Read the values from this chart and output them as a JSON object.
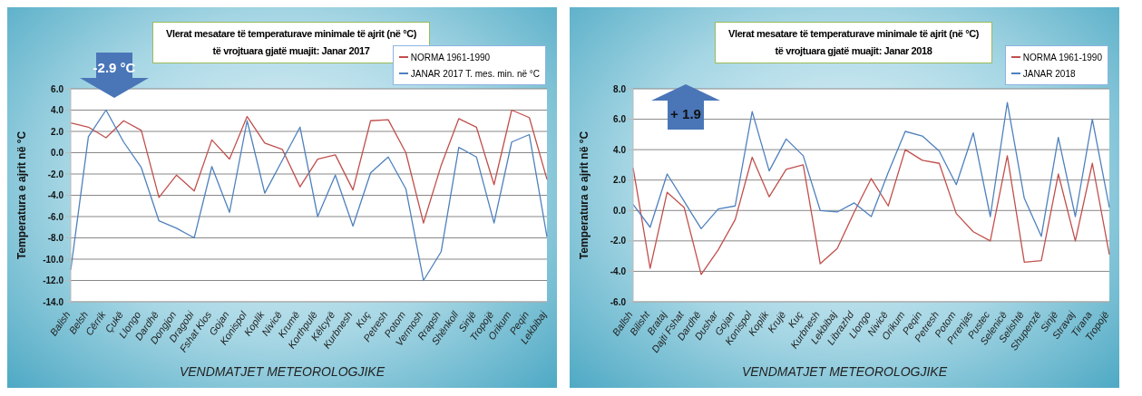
{
  "chart_data": [
    {
      "type": "line",
      "title": "Vlerat mesatare të temperaturave minimale të ajrit (në °C)\ntë vrojtuara gjatë muajit:  Janar 2017",
      "xlabel": "VENDMATJET  METEOROLOGJIKE",
      "ylabel": "Temperatura e ajrit në °C",
      "annotations": [
        "-2.9 °C"
      ],
      "categories": [
        "Balish",
        "Belsh",
        "Cërrik",
        "Çukë",
        "Llongo",
        "Dardhë",
        "Dongjon",
        "Dragobi",
        "Fshat Klos",
        "Gojan",
        "Konispol",
        "Koplik",
        "Nivicë",
        "Krumë",
        "Korthpulë",
        "Këlcyrë",
        "Kurbnesh",
        "Kuç",
        "Petresh",
        "Potom",
        "Vermosh",
        "Rrapsh",
        "Shënkoll",
        "Sinjë",
        "Tropojë",
        "Orikum",
        "Peqin",
        "Lekbibaj"
      ],
      "series": [
        {
          "name": "NORMA 1961-1990",
          "color": "#c0504d",
          "values": [
            2.8,
            2.4,
            1.4,
            3.0,
            2.1,
            -4.2,
            -2.1,
            -3.6,
            1.2,
            -0.6,
            3.4,
            0.9,
            0.3,
            -3.2,
            -0.6,
            -0.2,
            -3.5,
            3.0,
            3.1,
            0.0,
            -6.6,
            -1.2,
            3.2,
            2.4,
            -3.0,
            4.0,
            3.3,
            -2.5
          ]
        },
        {
          "name": "JANAR 2017 T. mes.  min. në °C",
          "color": "#4f81bd",
          "values": [
            -11.0,
            1.5,
            4.0,
            1.0,
            -1.4,
            -6.4,
            -7.1,
            -8.0,
            -1.3,
            -5.6,
            3.0,
            -3.8,
            -0.7,
            2.4,
            -6.0,
            -2.1,
            -6.9,
            -1.9,
            -0.4,
            -3.4,
            -12.0,
            -9.3,
            0.5,
            -0.4,
            -6.6,
            1.0,
            1.7,
            -7.9
          ]
        }
      ],
      "ylim": [
        -14,
        6
      ],
      "yticks": [
        {
          "value": -14,
          "label": "-14.0"
        },
        {
          "value": -12,
          "label": "-12.0"
        },
        {
          "value": -10,
          "label": "-10.0"
        },
        {
          "value": -8,
          "label": "-8.0"
        },
        {
          "value": -6,
          "label": "-6.0"
        },
        {
          "value": -4,
          "label": "-4.0"
        },
        {
          "value": -2,
          "label": "-2.0"
        },
        {
          "value": 0,
          "label": "0.0"
        },
        {
          "value": 2,
          "label": "2.0"
        },
        {
          "value": 4,
          "label": "4.0"
        },
        {
          "value": 6,
          "label": "6.0"
        }
      ],
      "grid": "y",
      "legend": "top right",
      "marker": "none",
      "line_style": "solid"
    },
    {
      "type": "line",
      "title": "Vlerat mesatare të temperaturave minimale të ajrit (në °C)\ntë vrojtuara gjatë muajit:  Janar 2018",
      "xlabel": "VENDMATJET  METEOROLOGJIKE",
      "ylabel": "Temperatura e ajrit në °C",
      "annotations": [
        "+ 1.9"
      ],
      "categories": [
        "Ballsh",
        "Bilisht",
        "Brataj",
        "Dajti Fshat",
        "Dardhë",
        "Dushar",
        "Gojan",
        "Konispol",
        "Koplik",
        "Krujë",
        "Kuç",
        "Kurbnesh",
        "Lekbibaj",
        "Librazhd",
        "Llongo",
        "Nivicë",
        "Orikum",
        "Peqin",
        "Petresh",
        "Potom",
        "Prrenjas",
        "Pustec",
        "Selenicë",
        "Selishtë",
        "Shupenzë",
        "Sinjë",
        "Stravaj",
        "Tirana",
        "Tropojë"
      ],
      "series": [
        {
          "name": "NORMA 1961-1990",
          "color": "#c0504d",
          "values": [
            2.8,
            -3.8,
            1.2,
            0.2,
            -4.2,
            -2.6,
            -0.6,
            3.5,
            0.9,
            2.7,
            3.0,
            -3.5,
            -2.5,
            -0.1,
            2.1,
            0.3,
            4.0,
            3.3,
            3.1,
            -0.2,
            -1.4,
            -2.0,
            3.6,
            -3.4,
            -3.3,
            2.4,
            -2.0,
            3.1,
            -2.9
          ]
        },
        {
          "name": "JANAR 2018",
          "color": "#4f81bd",
          "values": [
            0.4,
            -1.1,
            2.4,
            0.6,
            -1.2,
            0.1,
            0.3,
            6.5,
            2.6,
            4.7,
            3.6,
            0.0,
            -0.1,
            0.5,
            -0.4,
            2.5,
            5.2,
            4.9,
            3.9,
            1.7,
            5.1,
            -0.4,
            7.1,
            0.8,
            -1.7,
            4.8,
            -0.4,
            6.0,
            0.2
          ]
        }
      ],
      "ylim": [
        -6,
        8
      ],
      "yticks": [
        {
          "value": -6,
          "label": "-6.0"
        },
        {
          "value": -4,
          "label": "-4.0"
        },
        {
          "value": -2,
          "label": "-2.0"
        },
        {
          "value": 0,
          "label": "0.0"
        },
        {
          "value": 2,
          "label": "2.0"
        },
        {
          "value": 4,
          "label": "4.0"
        },
        {
          "value": 6,
          "label": "6.0"
        },
        {
          "value": 8,
          "label": "8.0"
        }
      ],
      "grid": "y",
      "legend": "top right",
      "marker": "none",
      "line_style": "solid"
    }
  ]
}
